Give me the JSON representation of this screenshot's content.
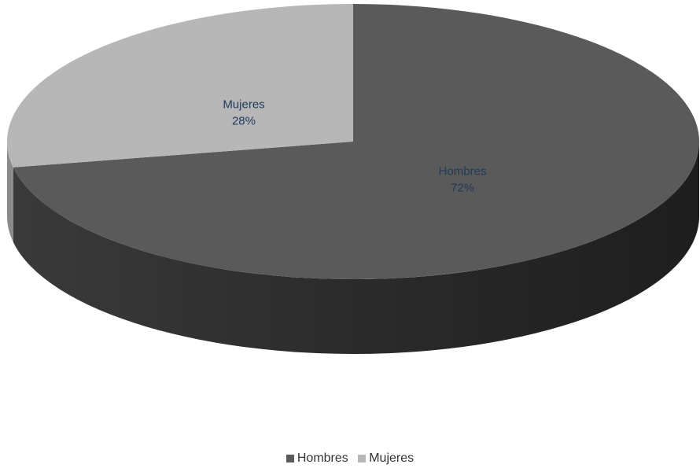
{
  "chart_data": {
    "type": "pie",
    "style": "3d",
    "series": [
      {
        "name": "Hombres",
        "value": 72,
        "label": "72%",
        "color": "#5a5a5a",
        "side_color": "#2e2e2e"
      },
      {
        "name": "Mujeres",
        "value": 28,
        "label": "28%",
        "color": "#b7b7b7",
        "side_color": "#8a8a8a"
      }
    ],
    "legend": {
      "position": "bottom"
    }
  }
}
